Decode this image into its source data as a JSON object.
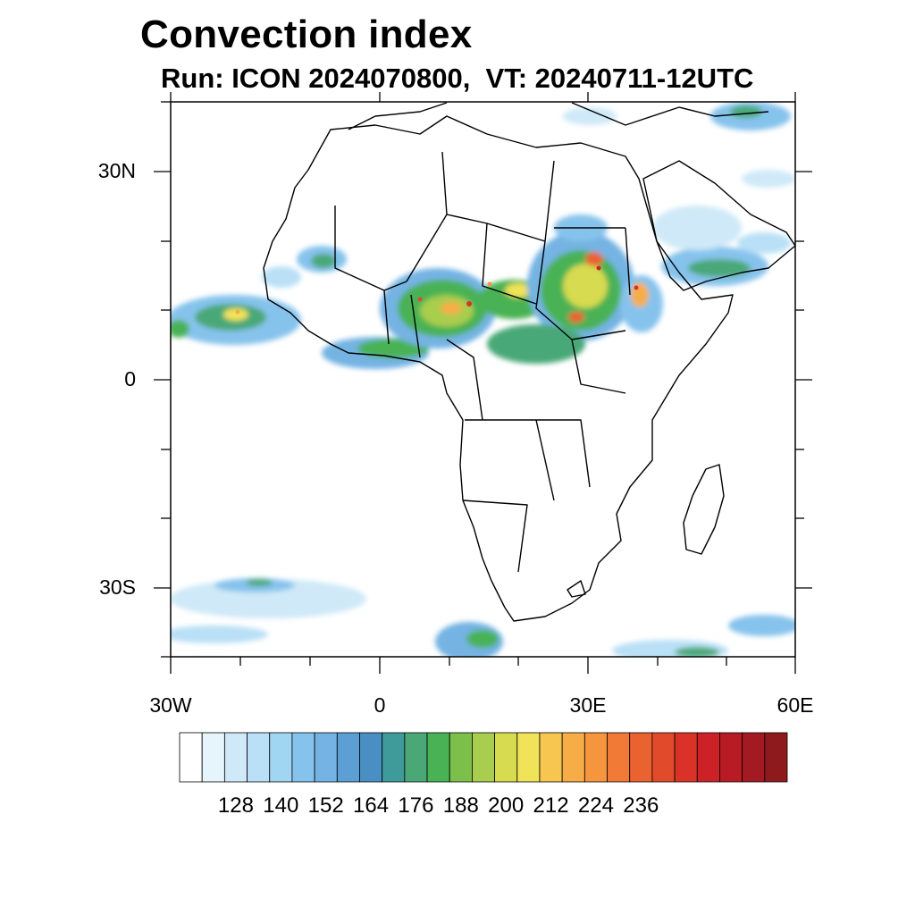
{
  "title": "Convection index",
  "subtitle": "Run: ICON 2024070800,  VT: 20240711-12UTC",
  "map": {
    "projection": "cylindrical equidistant",
    "lon_range": [
      -30,
      60
    ],
    "lat_range": [
      -40,
      40
    ],
    "y_tick_labels": [
      "30N",
      "0",
      "30S"
    ],
    "x_tick_labels": [
      "30W",
      "0",
      "30E",
      "60E"
    ]
  },
  "colorbar": {
    "labels": [
      "128",
      "140",
      "152",
      "164",
      "176",
      "188",
      "200",
      "212",
      "224",
      "236"
    ],
    "colors": [
      "#ffffff",
      "#e6f4fc",
      "#cfe9f8",
      "#b9e0f6",
      "#a1d6f3",
      "#86c3ec",
      "#74b3e3",
      "#5b9fd5",
      "#4a8fc4",
      "#3f9a9a",
      "#4aa877",
      "#48b254",
      "#7cbf4b",
      "#a9cd4e",
      "#d6db50",
      "#f0e359",
      "#f6c651",
      "#f6ad47",
      "#f5953e",
      "#f07a36",
      "#ea6230",
      "#e24a2c",
      "#da3129",
      "#cb2127",
      "#b81b24",
      "#a41a22",
      "#8e1a1e"
    ]
  }
}
